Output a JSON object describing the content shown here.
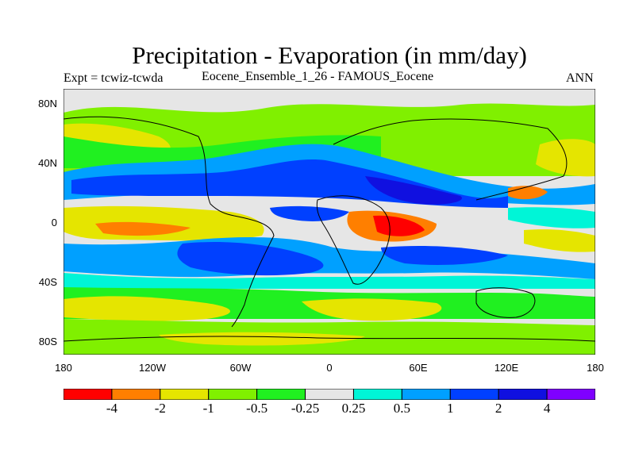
{
  "title": "Precipitation - Evaporation (in mm/day)",
  "subtitle_left": "Expt = tcwiz-tcwda",
  "subtitle_center": "Eocene_Ensemble_1_26 - FAMOUS_Eocene",
  "subtitle_right": "ANN",
  "lat_labels": [
    "80N",
    "40N",
    "0",
    "40S",
    "80S"
  ],
  "lon_labels": [
    "180",
    "120W",
    "60W",
    "0",
    "60E",
    "120E",
    "180"
  ],
  "colorbar": {
    "colors": [
      "#ff0000",
      "#ff7f00",
      "#e5e500",
      "#80f000",
      "#20f020",
      "#e6e6e6",
      "#00f5d7",
      "#00a0ff",
      "#0040ff",
      "#1010e0",
      "#7f00ff"
    ],
    "labels": [
      "-4",
      "-2",
      "-1",
      "-0.5",
      "-0.25",
      "0.25",
      "0.5",
      "1",
      "2",
      "4"
    ]
  }
}
